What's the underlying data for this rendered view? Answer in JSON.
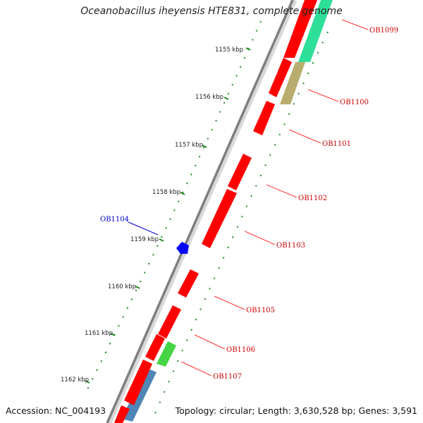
{
  "title": "Oceanobacillus iheyensis HTE831, complete genome",
  "footer": {
    "accession": "Accession: NC_004193",
    "summary": "Topology: circular; Length: 3,630,528 bp; Genes: 3,591"
  },
  "colors": {
    "backbone": "#7f7f7f",
    "gene_forward": "#ff0000",
    "gene_reverse_marker": "#0000ff",
    "label_red": "#cc0000",
    "label_blue": "#0000cc",
    "gc_skew": "#228b22",
    "teal": "#2edf9a",
    "olive": "#b8ad6e",
    "green": "#44d444",
    "steelblue": "#4f86b7"
  },
  "ticks": [
    {
      "label": "1155 kbp"
    },
    {
      "label": "1156 kbp"
    },
    {
      "label": "1157 kbp"
    },
    {
      "label": "1158 kbp"
    },
    {
      "label": "1159 kbp"
    },
    {
      "label": "1160 kbp"
    },
    {
      "label": "1161 kbp"
    },
    {
      "label": "1162 kbp"
    }
  ],
  "gene_labels": [
    {
      "name": "OB1099",
      "color": "#cc0000"
    },
    {
      "name": "OB1100",
      "color": "#cc0000"
    },
    {
      "name": "OB1101",
      "color": "#cc0000"
    },
    {
      "name": "OB1102",
      "color": "#cc0000"
    },
    {
      "name": "OB1103",
      "color": "#cc0000"
    },
    {
      "name": "OB1104",
      "color": "#0000cc"
    },
    {
      "name": "OB1105",
      "color": "#cc0000"
    },
    {
      "name": "OB1106",
      "color": "#cc0000"
    },
    {
      "name": "OB1107",
      "color": "#cc0000"
    }
  ]
}
